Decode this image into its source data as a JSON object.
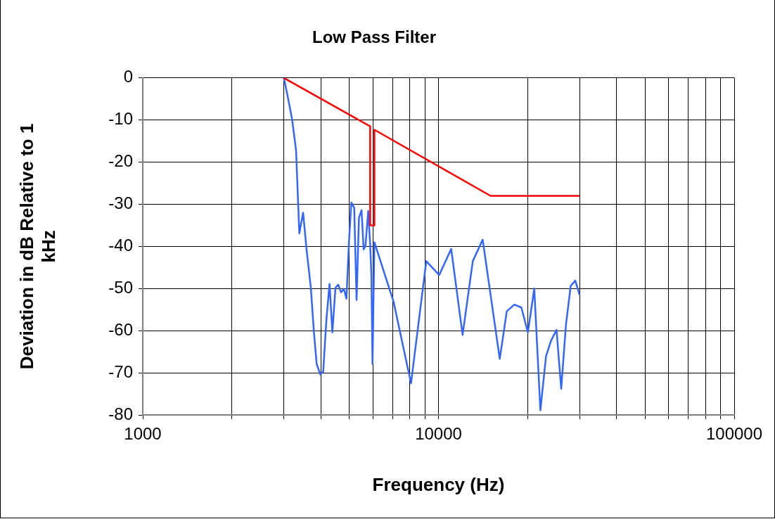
{
  "chart_data": {
    "type": "line",
    "title": "Low Pass Filter",
    "xlabel": "Frequency (Hz)",
    "ylabel": "Deviation in dB Relative to 1 kHz",
    "log": "x",
    "grid": true,
    "legend": false,
    "marker": "none",
    "line_style": "solid",
    "xlim": [
      1000,
      100000
    ],
    "ylim": [
      -80,
      0
    ],
    "xticks": [
      1000,
      {
        "value": 2000,
        "label": null
      },
      {
        "value": 3000,
        "label": null
      },
      {
        "value": 4000,
        "label": null
      },
      {
        "value": 5000,
        "label": null
      },
      {
        "value": 6000,
        "label": null
      },
      {
        "value": 7000,
        "label": null
      },
      {
        "value": 8000,
        "label": null
      },
      {
        "value": 9000,
        "label": null
      },
      10000,
      {
        "value": 20000,
        "label": null
      },
      {
        "value": 30000,
        "label": null
      },
      {
        "value": 40000,
        "label": null
      },
      {
        "value": 50000,
        "label": null
      },
      {
        "value": 60000,
        "label": null
      },
      {
        "value": 70000,
        "label": null
      },
      {
        "value": 80000,
        "label": null
      },
      {
        "value": 90000,
        "label": null
      },
      100000
    ],
    "yticks": [
      -80,
      -70,
      -60,
      -50,
      -40,
      -30,
      -20,
      -10,
      0
    ],
    "series": [
      {
        "color": "#ff0000",
        "x": [
          3000,
          5875,
          5875,
          6071,
          6071,
          15000,
          30000
        ],
        "values": [
          0,
          -11.5,
          -35,
          -35,
          -12.3,
          -28,
          -28
        ]
      },
      {
        "color": "#3366ff",
        "x": [
          3000,
          3083,
          3197,
          3299,
          3384,
          3485,
          3581,
          3701,
          3789,
          3873,
          3987,
          4075,
          4181,
          4282,
          4377,
          4483,
          4582,
          4683,
          4787,
          4883,
          4983,
          5075,
          5188,
          5285,
          5383,
          5493,
          5584,
          5663,
          5786,
          5875,
          5931,
          5983,
          6071,
          7053,
          8075,
          9093,
          10056,
          11040,
          12066,
          13062,
          14107,
          16114,
          17020,
          18050,
          19065,
          20060,
          21080,
          22110,
          23100,
          24010,
          25070,
          26000,
          26980,
          27990,
          29010,
          29990
        ],
        "values": [
          0,
          -4,
          -9.7,
          -17.2,
          -36.9,
          -32,
          -40.8,
          -49.8,
          -60.1,
          -67.9,
          -70.4,
          -69.7,
          -57.1,
          -48.9,
          -60.4,
          -49.8,
          -49.1,
          -50.9,
          -50.1,
          -52.4,
          -38.7,
          -29.6,
          -30.8,
          -52.7,
          -33.2,
          -31.4,
          -40.7,
          -39.9,
          -31.6,
          -39.6,
          -46.8,
          -67.9,
          -39,
          -53.2,
          -72.5,
          -43.5,
          -46.8,
          -40.6,
          -61,
          -43.5,
          -38.4,
          -66.7,
          -55.4,
          -53.8,
          -54.5,
          -60.4,
          -50,
          -78.9,
          -66.1,
          -62.4,
          -59.8,
          -73.8,
          -58.6,
          -49.4,
          -48.1,
          -51.5
        ]
      }
    ]
  }
}
